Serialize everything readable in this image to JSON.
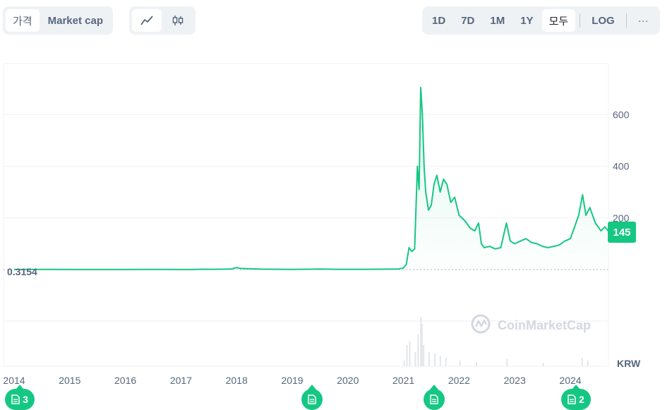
{
  "toolbar": {
    "view_tabs": [
      {
        "label": "가격",
        "active": true
      },
      {
        "label": "Market cap",
        "active": false
      }
    ],
    "chart_type": {
      "line_icon": "line-chart-icon",
      "candle_icon": "candlestick-icon",
      "active": "line"
    },
    "ranges": [
      {
        "label": "1D",
        "active": false
      },
      {
        "label": "7D",
        "active": false
      },
      {
        "label": "1M",
        "active": false
      },
      {
        "label": "1Y",
        "active": false
      },
      {
        "label": "모두",
        "active": true
      }
    ],
    "log_label": "LOG",
    "more_label": "···"
  },
  "watermark": "CoinMarketCap",
  "currency_label": "KRW",
  "start_price_label": "0.3154",
  "current_price_label": "145",
  "markers": [
    {
      "year": 2014,
      "count": "3",
      "icon": "document-icon"
    },
    {
      "year": 2019.35,
      "count": "",
      "icon": "document-icon"
    },
    {
      "year": 2021.55,
      "count": "",
      "icon": "document-icon"
    },
    {
      "year": 2024.1,
      "count": "2",
      "icon": "document-icon"
    }
  ],
  "colors": {
    "line": "#16c784",
    "grid": "#eff2f5",
    "badge": "#16c784",
    "dotted": "#a6b0c3"
  },
  "chart_data": {
    "type": "line",
    "xlabel": "",
    "ylabel": "",
    "x_ticks": [
      "2014",
      "2015",
      "2016",
      "2017",
      "2018",
      "2019",
      "2020",
      "2021",
      "2022",
      "2023",
      "2024"
    ],
    "y_ticks": [
      200,
      400,
      600
    ],
    "xlim": [
      2014,
      2024.7
    ],
    "ylim": [
      0,
      720
    ],
    "grid": true,
    "series": [
      {
        "values": [
          [
            2014.0,
            0.32
          ],
          [
            2014.5,
            0.5
          ],
          [
            2015.0,
            0.4
          ],
          [
            2015.5,
            0.3
          ],
          [
            2016.0,
            0.3
          ],
          [
            2016.5,
            0.5
          ],
          [
            2017.0,
            0.3
          ],
          [
            2017.2,
            0.4
          ],
          [
            2017.4,
            1.5
          ],
          [
            2017.6,
            1.0
          ],
          [
            2017.9,
            2.0
          ],
          [
            2018.0,
            8.0
          ],
          [
            2018.05,
            5.0
          ],
          [
            2018.2,
            3.5
          ],
          [
            2018.5,
            1.5
          ],
          [
            2018.8,
            1.0
          ],
          [
            2019.0,
            0.8
          ],
          [
            2019.3,
            1.5
          ],
          [
            2019.5,
            2.0
          ],
          [
            2019.8,
            1.2
          ],
          [
            2020.0,
            1.0
          ],
          [
            2020.3,
            1.2
          ],
          [
            2020.6,
            1.5
          ],
          [
            2020.9,
            1.8
          ],
          [
            2021.0,
            6.0
          ],
          [
            2021.05,
            20.0
          ],
          [
            2021.1,
            85.0
          ],
          [
            2021.15,
            70.0
          ],
          [
            2021.2,
            80.0
          ],
          [
            2021.25,
            400.0
          ],
          [
            2021.28,
            310.0
          ],
          [
            2021.31,
            705.0
          ],
          [
            2021.34,
            600.0
          ],
          [
            2021.37,
            400.0
          ],
          [
            2021.4,
            300.0
          ],
          [
            2021.45,
            230.0
          ],
          [
            2021.5,
            250.0
          ],
          [
            2021.55,
            330.0
          ],
          [
            2021.6,
            365.0
          ],
          [
            2021.66,
            300.0
          ],
          [
            2021.72,
            350.0
          ],
          [
            2021.78,
            330.0
          ],
          [
            2021.85,
            260.0
          ],
          [
            2021.92,
            280.0
          ],
          [
            2022.0,
            210.0
          ],
          [
            2022.1,
            190.0
          ],
          [
            2022.2,
            160.0
          ],
          [
            2022.28,
            150.0
          ],
          [
            2022.35,
            180.0
          ],
          [
            2022.4,
            100.0
          ],
          [
            2022.45,
            85.0
          ],
          [
            2022.55,
            90.0
          ],
          [
            2022.65,
            80.0
          ],
          [
            2022.75,
            85.0
          ],
          [
            2022.85,
            180.0
          ],
          [
            2022.92,
            110.0
          ],
          [
            2023.0,
            100.0
          ],
          [
            2023.1,
            110.0
          ],
          [
            2023.2,
            120.0
          ],
          [
            2023.3,
            105.0
          ],
          [
            2023.4,
            100.0
          ],
          [
            2023.5,
            90.0
          ],
          [
            2023.6,
            85.0
          ],
          [
            2023.7,
            90.0
          ],
          [
            2023.8,
            95.0
          ],
          [
            2023.9,
            110.0
          ],
          [
            2024.0,
            120.0
          ],
          [
            2024.1,
            180.0
          ],
          [
            2024.15,
            210.0
          ],
          [
            2024.22,
            290.0
          ],
          [
            2024.28,
            210.0
          ],
          [
            2024.35,
            240.0
          ],
          [
            2024.45,
            180.0
          ],
          [
            2024.55,
            150.0
          ],
          [
            2024.62,
            165.0
          ],
          [
            2024.7,
            145.0
          ]
        ]
      }
    ]
  }
}
